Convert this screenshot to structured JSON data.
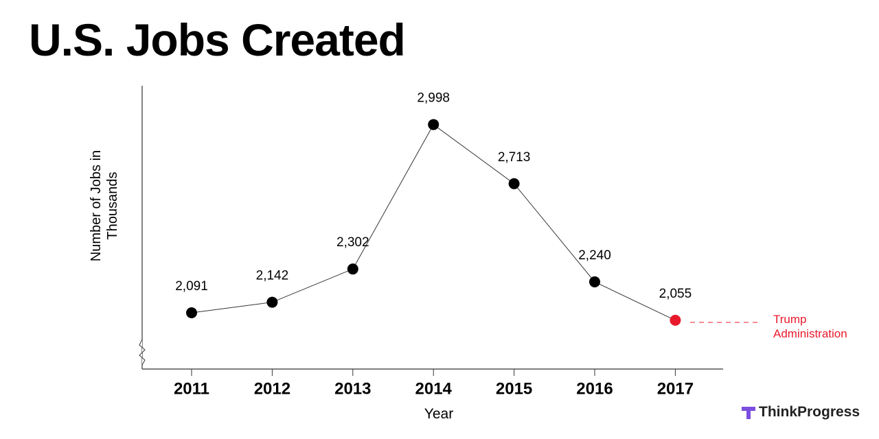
{
  "chart_data": {
    "type": "line",
    "title": "U.S. Jobs Created",
    "x_label": "Year",
    "y_label": "Number of Jobs in Thousands",
    "categories": [
      "2011",
      "2012",
      "2013",
      "2014",
      "2015",
      "2016",
      "2017"
    ],
    "values": [
      2091,
      2142,
      2302,
      2998,
      2713,
      2240,
      2055
    ],
    "value_labels": [
      "2,091",
      "2,142",
      "2,302",
      "2,998",
      "2,713",
      "2,240",
      "2,055"
    ],
    "point_colors": [
      "#000000",
      "#000000",
      "#000000",
      "#000000",
      "#000000",
      "#000000",
      "#e8192c"
    ],
    "line_color": "#333333",
    "ylim": [
      1820,
      3185
    ],
    "annotation": "Trump Administration",
    "annotation_color": "#e8192c",
    "source": "ThinkProgress"
  }
}
